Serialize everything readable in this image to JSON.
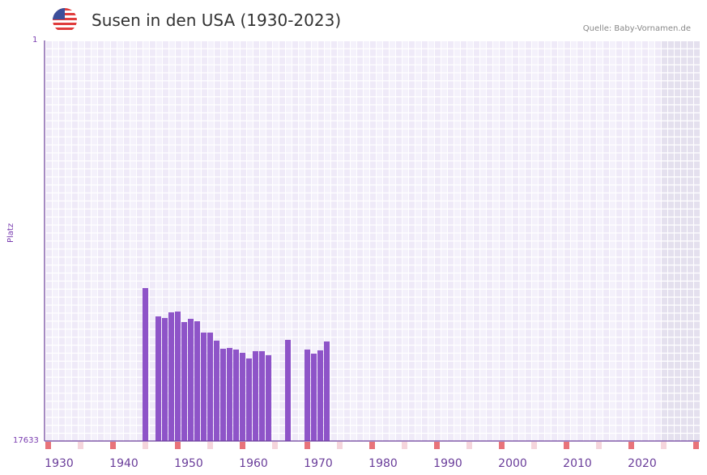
{
  "header": {
    "title": "Susen in den USA (1930-2023)",
    "source": "Quelle: Baby-Vornamen.de",
    "flag_icon": "us-flag-icon"
  },
  "chart_data": {
    "type": "bar",
    "title": "Susen in den USA (1930-2023)",
    "xlabel": "",
    "ylabel": "Platz",
    "ylim": [
      17633,
      1
    ],
    "y_ticks": [
      "1",
      "17633"
    ],
    "x_range": [
      1928,
      2028
    ],
    "x_ticks": [
      "1930",
      "1940",
      "1950",
      "1960",
      "1970",
      "1980",
      "1990",
      "2000",
      "2010",
      "2020"
    ],
    "x": [
      1943,
      1945,
      1946,
      1947,
      1948,
      1949,
      1950,
      1951,
      1952,
      1953,
      1954,
      1955,
      1956,
      1957,
      1958,
      1959,
      1960,
      1961,
      1962,
      1965,
      1968,
      1969,
      1970,
      1971
    ],
    "values": [
      10901,
      12147,
      12218,
      11969,
      11934,
      12396,
      12254,
      12361,
      12860,
      12860,
      13215,
      13571,
      13536,
      13607,
      13750,
      13999,
      13678,
      13678,
      13856,
      13180,
      13607,
      13785,
      13643,
      13251
    ],
    "shaded_from_year": 2023,
    "colors": {
      "bar": "#8e54c8",
      "axis": "#6a3d9a",
      "marker_strong": "#e8737a",
      "marker_light": "#f5d5dc",
      "grid_a": "#efeaf8",
      "grid_b": "#f4f1fb",
      "shade": "#e4e0ee"
    }
  }
}
